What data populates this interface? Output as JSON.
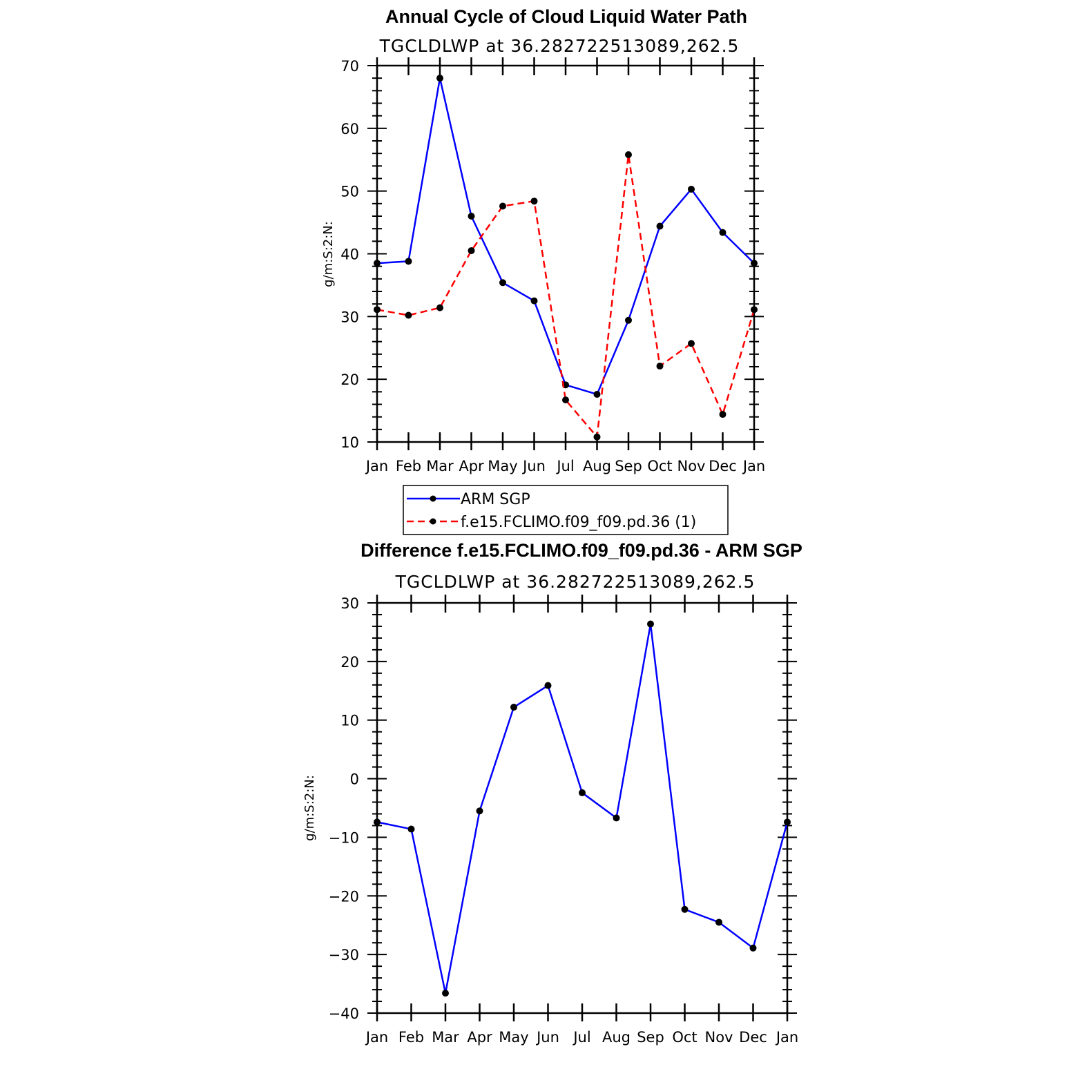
{
  "chart_data": [
    {
      "type": "line",
      "title": "Annual Cycle of Cloud Liquid Water Path",
      "subtitle": "TGCLDLWP at 36.282722513089,262.5",
      "ylabel": "g/m:S:2:N:",
      "xlabel": "",
      "categories": [
        "Jan",
        "Feb",
        "Mar",
        "Apr",
        "May",
        "Jun",
        "Jul",
        "Aug",
        "Sep",
        "Oct",
        "Nov",
        "Dec",
        "Jan"
      ],
      "yticks": [
        "10",
        "20",
        "30",
        "40",
        "50",
        "60",
        "70"
      ],
      "ylim": [
        10,
        70
      ],
      "series": [
        {
          "name": "ARM SGP",
          "color": "#0000ff",
          "dash": "solid",
          "values": [
            38.5,
            38.8,
            68.0,
            46.0,
            35.4,
            32.5,
            19.1,
            17.6,
            29.4,
            44.4,
            50.3,
            43.4,
            38.5
          ]
        },
        {
          "name": "f.e15.FCLIMO.f09_f09.pd.36 (1)",
          "color": "#ff0000",
          "dash": "dashed",
          "values": [
            31.1,
            30.2,
            31.4,
            40.5,
            47.6,
            48.4,
            16.7,
            10.8,
            55.8,
            22.1,
            25.7,
            14.4,
            31.1
          ]
        }
      ],
      "legend": [
        {
          "label": "ARM SGP",
          "color": "#0000ff",
          "dash": "solid"
        },
        {
          "label": "f.e15.FCLIMO.f09_f09.pd.36 (1)",
          "color": "#ff0000",
          "dash": "dashed"
        }
      ]
    },
    {
      "type": "line",
      "title": "Difference f.e15.FCLIMO.f09_f09.pd.36 - ARM SGP",
      "subtitle": "TGCLDLWP at 36.282722513089,262.5",
      "ylabel": "g/m:S:2:N:",
      "xlabel": "",
      "categories": [
        "Jan",
        "Feb",
        "Mar",
        "Apr",
        "May",
        "Jun",
        "Jul",
        "Aug",
        "Sep",
        "Oct",
        "Nov",
        "Dec",
        "Jan"
      ],
      "yticks": [
        "−40",
        "−30",
        "−20",
        "−10",
        "0",
        "10",
        "20",
        "30"
      ],
      "ylim": [
        -40,
        30
      ],
      "series": [
        {
          "name": "Difference",
          "color": "#0000ff",
          "dash": "solid",
          "values": [
            -7.4,
            -8.6,
            -36.6,
            -5.5,
            12.2,
            15.9,
            -2.4,
            -6.7,
            26.4,
            -22.3,
            -24.5,
            -28.9,
            -7.4
          ]
        }
      ]
    }
  ]
}
